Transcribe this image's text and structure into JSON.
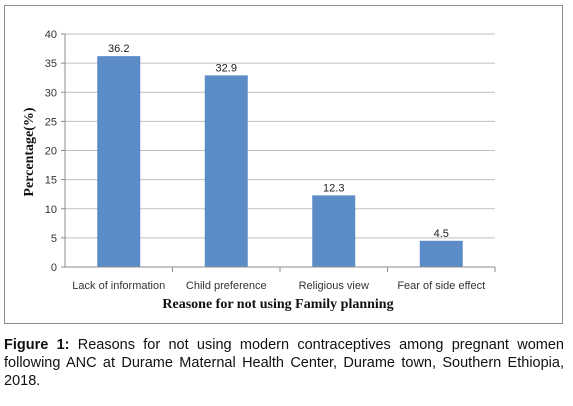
{
  "chart_data": {
    "type": "bar",
    "categories": [
      "Lack of information",
      "Child preference",
      "Religious view",
      "Fear of side effect"
    ],
    "values": [
      36.2,
      32.9,
      12.3,
      4.5
    ],
    "data_labels": [
      "36.2",
      "32.9",
      "12.3",
      "4.5"
    ],
    "xlabel": "Reasone for not using Family planning",
    "ylabel": "Percentage(%)",
    "ylim": [
      0,
      40
    ],
    "yticks": [
      0,
      5,
      10,
      15,
      20,
      25,
      30,
      35,
      40
    ],
    "bar_color": "#5b8cc8",
    "grid": "horizontal",
    "legend": "none"
  },
  "caption": {
    "label": "Figure 1:",
    "text": " Reasons for not using modern contraceptives among pregnant women following ANC at Durame Maternal Health Center, Durame town, Southern Ethiopia, 2018."
  }
}
